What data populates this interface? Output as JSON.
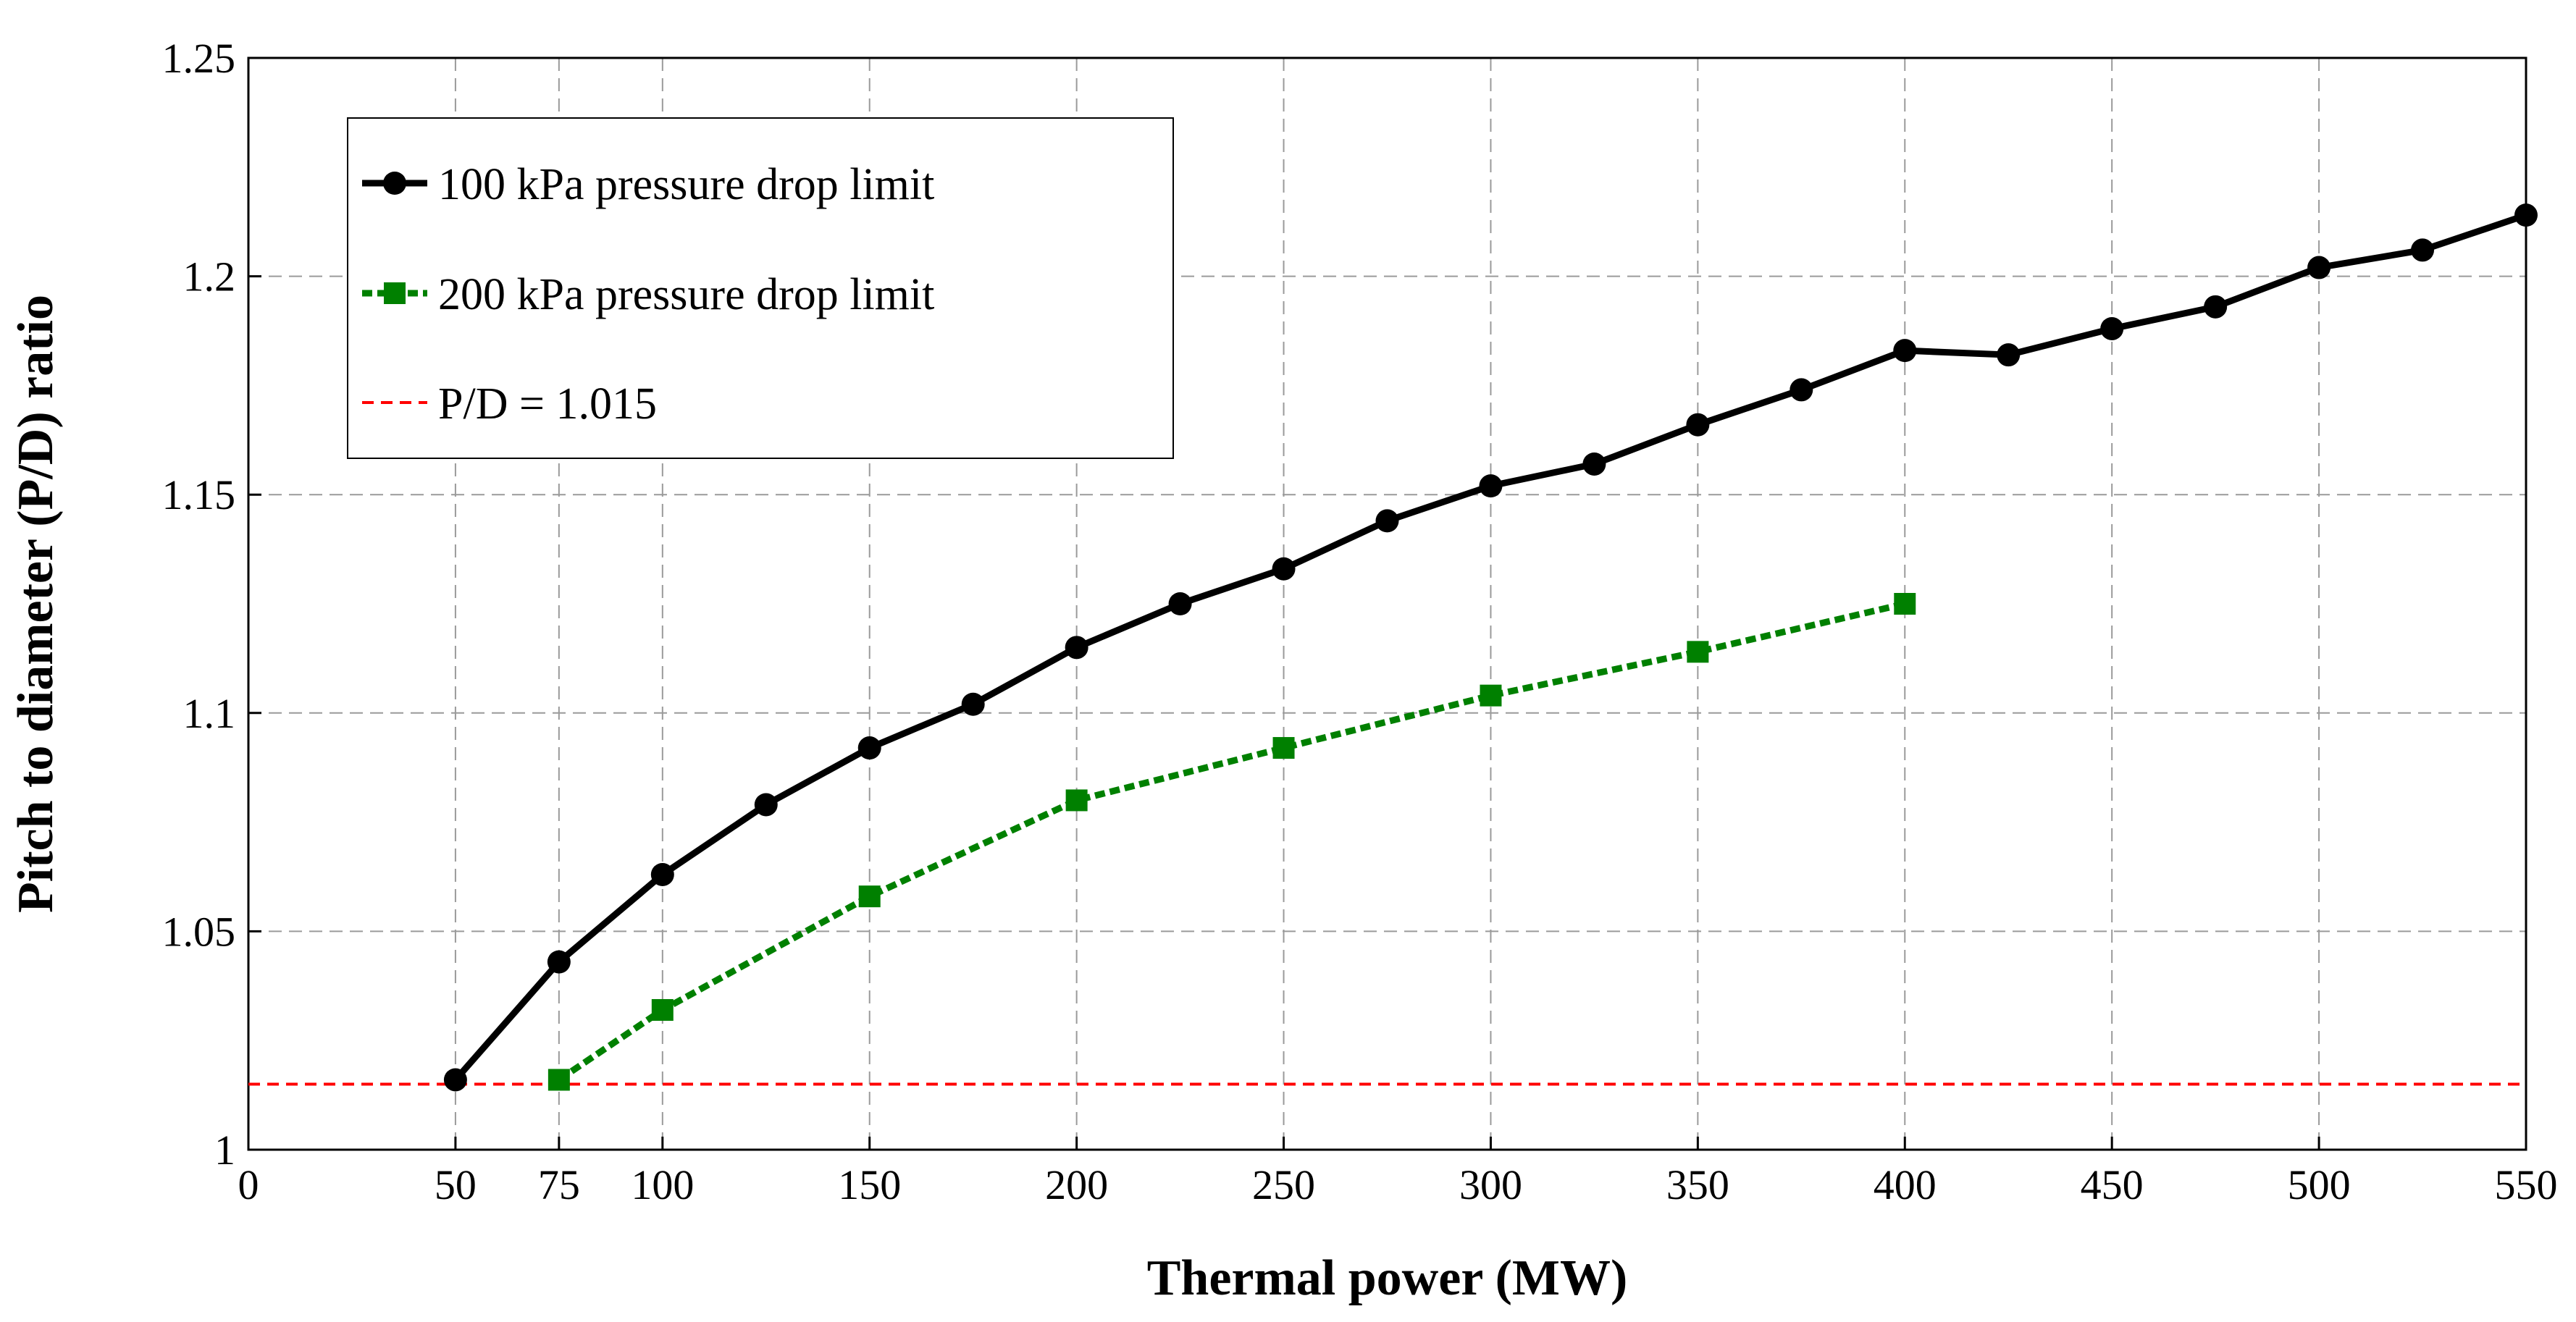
{
  "chart_data": {
    "type": "line",
    "title": "",
    "xlabel": "Thermal power (MW)",
    "ylabel": "Pitch to diameter (P/D) ratio",
    "xlim": [
      0,
      550
    ],
    "ylim": [
      1,
      1.25
    ],
    "grid": true,
    "legend_position": "top-left",
    "x_ticks": [
      0,
      50,
      75,
      100,
      150,
      200,
      250,
      300,
      350,
      400,
      450,
      500,
      550
    ],
    "x_tick_labels": [
      "0",
      "50",
      "75",
      "100",
      "150",
      "200",
      "250",
      "300",
      "350",
      "400",
      "450",
      "500",
      "550"
    ],
    "y_ticks": [
      1,
      1.05,
      1.1,
      1.15,
      1.2,
      1.25
    ],
    "y_tick_labels": [
      "1",
      "1.05",
      "1.1",
      "1.15",
      "1.2",
      "1.25"
    ],
    "series": [
      {
        "name": "100 kPa pressure drop limit",
        "color": "#000000",
        "line_style": "solid",
        "marker": "circle",
        "x": [
          50,
          75,
          100,
          125,
          150,
          175,
          200,
          225,
          250,
          275,
          300,
          325,
          350,
          375,
          400,
          425,
          450,
          475,
          500,
          525,
          550
        ],
        "y": [
          1.016,
          1.043,
          1.063,
          1.079,
          1.092,
          1.102,
          1.115,
          1.125,
          1.133,
          1.144,
          1.152,
          1.157,
          1.166,
          1.174,
          1.183,
          1.182,
          1.188,
          1.193,
          1.202,
          1.206,
          1.214
        ]
      },
      {
        "name": "200 kPa pressure drop limit",
        "color": "#008000",
        "line_style": "dotted",
        "marker": "square",
        "x": [
          75,
          100,
          150,
          200,
          250,
          300,
          350,
          400
        ],
        "y": [
          1.016,
          1.032,
          1.058,
          1.08,
          1.092,
          1.104,
          1.114,
          1.125
        ]
      },
      {
        "name": "P/D = 1.015",
        "color": "#ff0000",
        "line_style": "dashed",
        "marker": "none",
        "x": [
          0,
          550
        ],
        "y": [
          1.015,
          1.015
        ]
      }
    ]
  }
}
